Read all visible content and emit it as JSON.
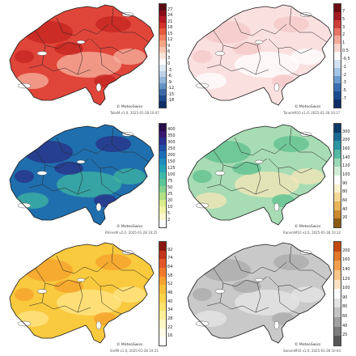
{
  "panels": [
    {
      "id": "tabsd",
      "credit": "© MeteoSwiss",
      "caption": "TabsM v1.0, 2025-01-28 10:47",
      "ticks": [
        "27",
        "24",
        "21",
        "18",
        "15",
        "12",
        "9",
        "6",
        "3",
        "0",
        "-3",
        "-6",
        "-9",
        "-12",
        "-15",
        "-18"
      ],
      "colors": [
        "#5a0a12",
        "#8a0e1a",
        "#b51a22",
        "#d3322b",
        "#e45a3d",
        "#ef8060",
        "#f5a585",
        "#f9c7b0",
        "#fbe3d8",
        "#ffffff",
        "#dde8f3",
        "#bcd2e8",
        "#92b6d9",
        "#6592c4",
        "#3c6aa8",
        "#1f4a8c",
        "#0e2f66"
      ],
      "map_fill": "#e0453a",
      "map_fill2": "#c4241f",
      "map_fill3": "#f7b3a0"
    },
    {
      "id": "tabsanom",
      "credit": "© MeteoSwiss",
      "caption": "TanomM10 v1.0, 2025-01-28 10:17",
      "ticks": [
        "7",
        "5",
        "3",
        "2",
        "1",
        "0.5",
        "-0.5",
        "-1",
        "-2",
        "-3",
        "-5",
        "-7"
      ],
      "colors": [
        "#6b0d12",
        "#a31a22",
        "#cf3d3a",
        "#e87566",
        "#f3a89a",
        "#fbd4cc",
        "#ffffff",
        "#d2e2f1",
        "#a3c4e3",
        "#6a9cd0",
        "#3a6eb2",
        "#1a4a8f",
        "#0d2e66"
      ],
      "map_fill": "#fbe0e0",
      "map_fill2": "#f6c8c8",
      "map_fill3": "#ffffff"
    },
    {
      "id": "rhiresd",
      "credit": "© MeteoSwiss",
      "caption": "RhiresM v2.0, 2025-01-28 10:25",
      "ticks": [
        "400",
        "350",
        "300",
        "250",
        "200",
        "150",
        "125",
        "100",
        "75",
        "50",
        "25",
        "20",
        "10",
        "5",
        "2"
      ],
      "colors": [
        "#2a0b4a",
        "#3a1770",
        "#2b2f8f",
        "#1f4ea8",
        "#1e6fb8",
        "#1f8cbf",
        "#27a3b8",
        "#3cb7a8",
        "#5cc49a",
        "#86d28c",
        "#b1df82",
        "#d8eb8a",
        "#f2f3a6",
        "#fbf8cf",
        "#ffffff"
      ],
      "map_fill": "#1f6fae",
      "map_fill2": "#2a2f85",
      "map_fill3": "#3fb4a0"
    },
    {
      "id": "ranom",
      "credit": "© MeteoSwiss",
      "caption": "RanomM10 v2.0, 2025-01-28 10:32",
      "ticks": [
        "300",
        "200",
        "160",
        "140",
        "120",
        "100",
        "90",
        "80",
        "60",
        "40",
        "20"
      ],
      "colors": [
        "#0d3a66",
        "#1b6a94",
        "#2d95a6",
        "#56b9a3",
        "#9dd8b6",
        "#d2eed7",
        "#ffffff",
        "#fbf0cc",
        "#f5d795",
        "#e8b45a",
        "#c98a2c",
        "#8c5a12"
      ],
      "map_fill": "#a7dcb4",
      "map_fill2": "#5ec08f",
      "map_fill3": "#f6e7b8"
    },
    {
      "id": "sunsd",
      "credit": "© MeteoSwiss",
      "caption": "SrelM v1.0, 2025-01-28 10:21",
      "ticks": [
        "92",
        "74",
        "64",
        "58",
        "52",
        "46",
        "40",
        "34",
        "28",
        "22",
        "16"
      ],
      "colors": [
        "#8a1a10",
        "#c2331c",
        "#e2562a",
        "#f07a2c",
        "#f6a12e",
        "#f8c13a",
        "#fad44a",
        "#fce26a",
        "#fdee97",
        "#fef6c4",
        "#fffbe6",
        "#ffffff"
      ],
      "map_fill": "#f9c93e",
      "map_fill2": "#f59f2c",
      "map_fill3": "#fde68a"
    },
    {
      "id": "sunanom",
      "credit": "© MeteoSwiss",
      "caption": "SanomM10 v1.0, 2025-01-28 10:44",
      "ticks": [
        "200",
        "160",
        "140",
        "120",
        "100",
        "90",
        "80",
        "60",
        "40",
        "25"
      ],
      "colors": [
        "#c24a10",
        "#e2772a",
        "#f4a050",
        "#f9c78a",
        "#fce3c4",
        "#ffffff",
        "#e2e2e2",
        "#c4c4c4",
        "#a0a0a0",
        "#7c7c7c",
        "#575757"
      ],
      "map_fill": "#c9c9c9",
      "map_fill2": "#a9a9a9",
      "map_fill3": "#e6e6e6"
    }
  ]
}
